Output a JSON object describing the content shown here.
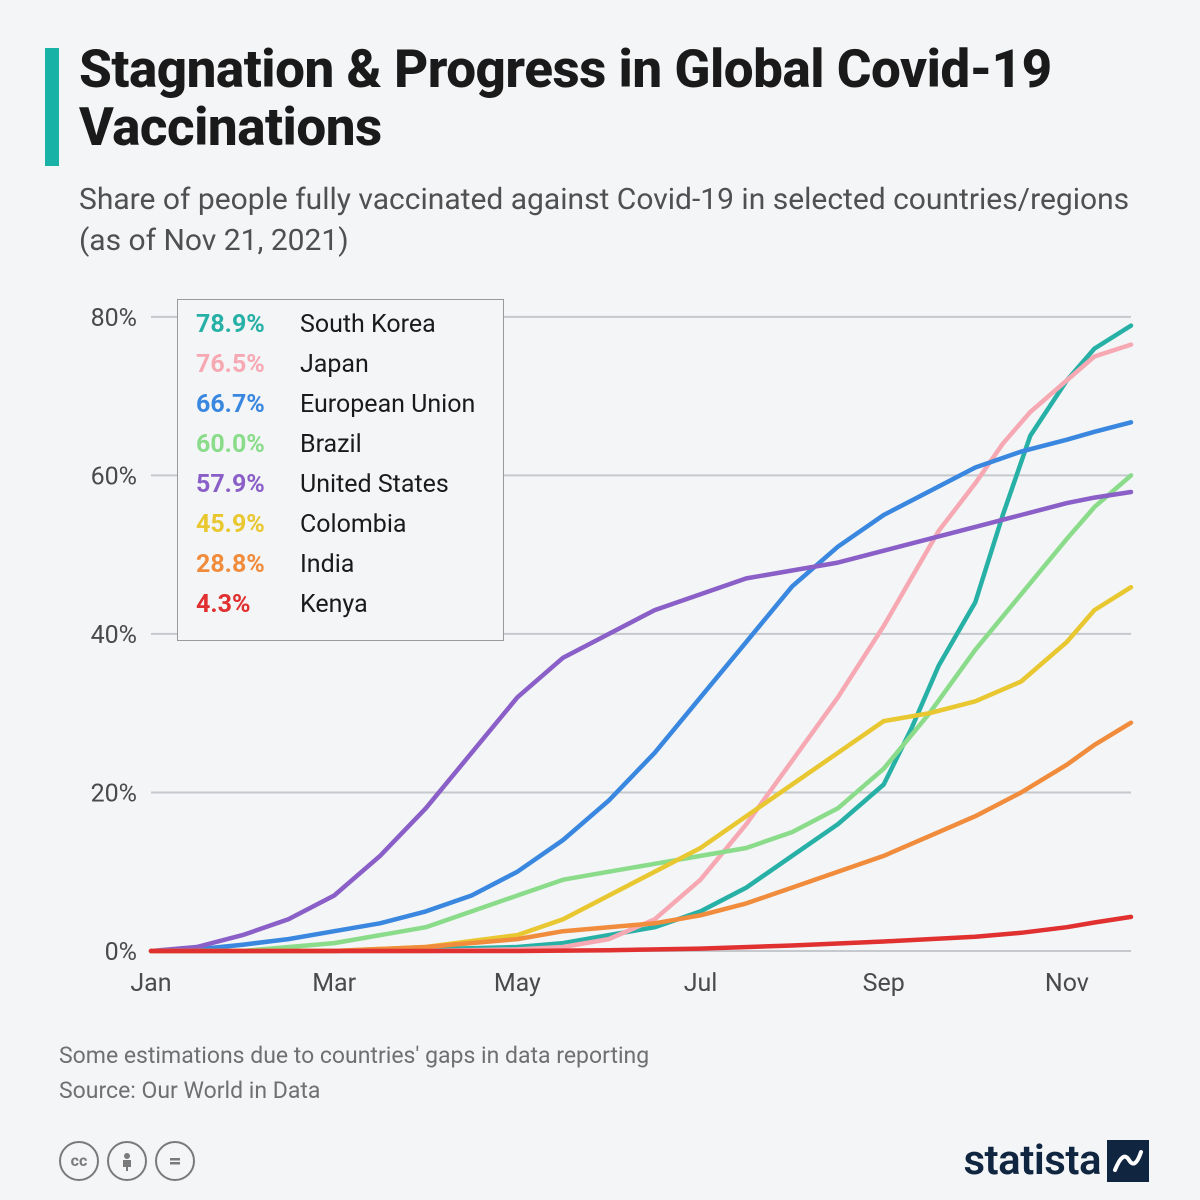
{
  "title": "Stagnation & Progress in Global Covid-19 Vaccinations",
  "subtitle": "Share of people fully vaccinated against Covid-19 in selected countries/regions (as of Nov 21, 2021)",
  "footnote_line1": "Some estimations due to countries' gaps in data reporting",
  "footnote_line2": "Source: Our World in Data",
  "brand": "statista",
  "chart": {
    "type": "line",
    "background_color": "#f3f5f7",
    "grid_color": "#c5c9cd",
    "axis_text_color": "#4a4a4a",
    "axis_fontsize": 25,
    "label_fontsize": 25,
    "line_width": 4.5,
    "ylim": [
      0,
      82
    ],
    "ytick_step": 20,
    "yticks": [
      0,
      20,
      40,
      60,
      80
    ],
    "ytick_labels": [
      "0%",
      "20%",
      "40%",
      "60%",
      "80%"
    ],
    "xlim": [
      0,
      10.7
    ],
    "xticks": [
      0,
      2,
      4,
      6,
      8,
      10
    ],
    "xtick_labels": [
      "Jan",
      "Mar",
      "May",
      "Jul",
      "Sep",
      "Nov"
    ],
    "series": [
      {
        "name": "South Korea",
        "pct_label": "78.9%",
        "color": "#27b0a5",
        "x": [
          0,
          1,
          2,
          3,
          4,
          4.5,
          5,
          5.5,
          6,
          6.5,
          7,
          7.5,
          8,
          8.3,
          8.6,
          9,
          9.3,
          9.6,
          10,
          10.3,
          10.7
        ],
        "y": [
          0,
          0,
          0,
          0.2,
          0.5,
          1,
          2,
          3,
          5,
          8,
          12,
          16,
          21,
          28,
          36,
          44,
          55,
          65,
          72,
          76,
          78.9
        ]
      },
      {
        "name": "Japan",
        "pct_label": "76.5%",
        "color": "#f7a9b3",
        "x": [
          0,
          1,
          2,
          3,
          4,
          4.5,
          5,
          5.5,
          6,
          6.5,
          7,
          7.5,
          8,
          8.3,
          8.6,
          9,
          9.3,
          9.6,
          10,
          10.3,
          10.7
        ],
        "y": [
          0,
          0,
          0,
          0,
          0.2,
          0.5,
          1.5,
          4,
          9,
          16,
          24,
          32,
          41,
          47,
          53,
          59,
          64,
          68,
          72,
          75,
          76.5
        ]
      },
      {
        "name": "European Union",
        "pct_label": "66.7%",
        "color": "#3a87e0",
        "x": [
          0,
          0.5,
          1,
          1.5,
          2,
          2.5,
          3,
          3.5,
          4,
          4.5,
          5,
          5.5,
          6,
          6.5,
          7,
          7.5,
          8,
          8.5,
          9,
          9.5,
          10,
          10.3,
          10.7
        ],
        "y": [
          0,
          0.2,
          0.8,
          1.5,
          2.5,
          3.5,
          5,
          7,
          10,
          14,
          19,
          25,
          32,
          39,
          46,
          51,
          55,
          58,
          61,
          63,
          64.5,
          65.5,
          66.7
        ]
      },
      {
        "name": "Brazil",
        "pct_label": "60.0%",
        "color": "#8adc8a",
        "x": [
          0,
          1,
          2,
          3,
          3.5,
          4,
          4.5,
          5,
          5.5,
          6,
          6.5,
          7,
          7.5,
          8,
          8.5,
          9,
          9.5,
          10,
          10.3,
          10.7
        ],
        "y": [
          0,
          0,
          1,
          3,
          5,
          7,
          9,
          10,
          11,
          12,
          13,
          15,
          18,
          23,
          30,
          38,
          45,
          52,
          56,
          60
        ]
      },
      {
        "name": "United States",
        "pct_label": "57.9%",
        "color": "#8a5fc7",
        "x": [
          0,
          0.5,
          1,
          1.5,
          2,
          2.5,
          3,
          3.5,
          4,
          4.5,
          5,
          5.5,
          6,
          6.5,
          7,
          7.5,
          8,
          8.5,
          9,
          9.5,
          10,
          10.3,
          10.7
        ],
        "y": [
          0,
          0.5,
          2,
          4,
          7,
          12,
          18,
          25,
          32,
          37,
          40,
          43,
          45,
          47,
          48,
          49,
          50.5,
          52,
          53.5,
          55,
          56.5,
          57.2,
          57.9
        ]
      },
      {
        "name": "Colombia",
        "pct_label": "45.9%",
        "color": "#e8c730",
        "x": [
          0,
          1,
          2,
          3,
          4,
          4.5,
          5,
          5.5,
          6,
          6.5,
          7,
          7.5,
          8,
          8.5,
          9,
          9.5,
          10,
          10.3,
          10.7
        ],
        "y": [
          0,
          0,
          0,
          0.5,
          2,
          4,
          7,
          10,
          13,
          17,
          21,
          25,
          29,
          30,
          31.5,
          34,
          39,
          43,
          45.9
        ]
      },
      {
        "name": "India",
        "pct_label": "28.8%",
        "color": "#f08c3c",
        "x": [
          0,
          1,
          2,
          3,
          4,
          4.5,
          5,
          5.5,
          6,
          6.5,
          7,
          7.5,
          8,
          8.5,
          9,
          9.5,
          10,
          10.3,
          10.7
        ],
        "y": [
          0,
          0,
          0,
          0.5,
          1.5,
          2.5,
          3,
          3.5,
          4.5,
          6,
          8,
          10,
          12,
          14.5,
          17,
          20,
          23.5,
          26,
          28.8
        ]
      },
      {
        "name": "Kenya",
        "pct_label": "4.3%",
        "color": "#e03030",
        "x": [
          0,
          1,
          2,
          3,
          4,
          5,
          6,
          7,
          8,
          9,
          9.5,
          10,
          10.3,
          10.7
        ],
        "y": [
          0,
          0,
          0,
          0,
          0,
          0.1,
          0.3,
          0.7,
          1.2,
          1.8,
          2.3,
          3,
          3.6,
          4.3
        ]
      }
    ]
  }
}
